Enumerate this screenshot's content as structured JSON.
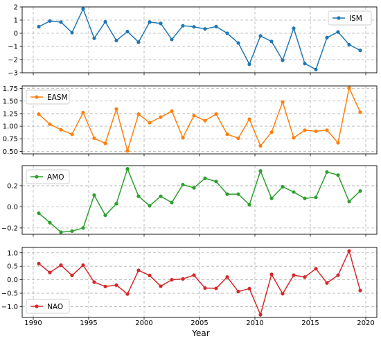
{
  "chart_data": [
    {
      "type": "line",
      "x": [
        1990.5,
        1991.5,
        1992.5,
        1993.5,
        1994.5,
        1995.5,
        1996.5,
        1997.5,
        1998.5,
        1999.5,
        2000.5,
        2001.5,
        2002.5,
        2003.5,
        2004.5,
        2005.5,
        2006.5,
        2007.5,
        2008.5,
        2009.5,
        2010.5,
        2011.5,
        2012.5,
        2013.5,
        2014.5,
        2015.5,
        2016.5,
        2017.5,
        2018.5,
        2019.5
      ],
      "series": [
        {
          "name": "ISM",
          "color": "#1f77b4",
          "values": [
            0.5,
            0.93,
            0.85,
            0.05,
            1.85,
            -0.38,
            0.87,
            -0.55,
            0.13,
            -0.67,
            0.85,
            0.75,
            -0.47,
            0.57,
            0.49,
            0.33,
            0.51,
            0.0,
            -0.74,
            -2.35,
            -0.2,
            -0.62,
            -2.05,
            0.38,
            -2.3,
            -2.75,
            -0.33,
            0.1,
            -0.86,
            -1.3
          ]
        }
      ],
      "ylim": [
        -3,
        2
      ],
      "yticks": [
        "2",
        "1",
        "0",
        "−1",
        "−2",
        "−3"
      ],
      "ytick_values": [
        2,
        1,
        0,
        -1,
        -2,
        -3
      ],
      "legend_position": "upper right",
      "grid": true
    },
    {
      "type": "line",
      "x": [
        1990.5,
        1991.5,
        1992.5,
        1993.5,
        1994.5,
        1995.5,
        1996.5,
        1997.5,
        1998.5,
        1999.5,
        2000.5,
        2001.5,
        2002.5,
        2003.5,
        2004.5,
        2005.5,
        2006.5,
        2007.5,
        2008.5,
        2009.5,
        2010.5,
        2011.5,
        2012.5,
        2013.5,
        2014.5,
        2015.5,
        2016.5,
        2017.5,
        2018.5,
        2019.5
      ],
      "series": [
        {
          "name": "EASM",
          "color": "#ff7f0e",
          "values": [
            1.24,
            1.04,
            0.93,
            0.84,
            1.27,
            0.76,
            0.66,
            1.34,
            0.51,
            1.24,
            1.07,
            1.18,
            1.3,
            0.77,
            1.21,
            1.11,
            1.24,
            0.84,
            0.76,
            1.14,
            0.61,
            0.88,
            1.48,
            0.77,
            0.92,
            0.9,
            0.92,
            0.67,
            1.76,
            1.28
          ]
        }
      ],
      "ylim": [
        0.45,
        1.8
      ],
      "yticks": [
        "1.75",
        "1.50",
        "1.25",
        "1.00",
        "0.75",
        "0.50"
      ],
      "ytick_values": [
        1.75,
        1.5,
        1.25,
        1.0,
        0.75,
        0.5
      ],
      "legend_position": "upper left",
      "grid": true
    },
    {
      "type": "line",
      "x": [
        1990.5,
        1991.5,
        1992.5,
        1993.5,
        1994.5,
        1995.5,
        1996.5,
        1997.5,
        1998.5,
        1999.5,
        2000.5,
        2001.5,
        2002.5,
        2003.5,
        2004.5,
        2005.5,
        2006.5,
        2007.5,
        2008.5,
        2009.5,
        2010.5,
        2011.5,
        2012.5,
        2013.5,
        2014.5,
        2015.5,
        2016.5,
        2017.5,
        2018.5,
        2019.5
      ],
      "series": [
        {
          "name": "AMO",
          "color": "#2ca02c",
          "values": [
            -0.06,
            -0.15,
            -0.24,
            -0.23,
            -0.2,
            0.11,
            -0.08,
            0.03,
            0.36,
            0.1,
            0.01,
            0.1,
            0.04,
            0.21,
            0.18,
            0.27,
            0.24,
            0.12,
            0.12,
            0.02,
            0.34,
            0.08,
            0.19,
            0.14,
            0.08,
            0.09,
            0.33,
            0.3,
            0.05,
            0.15
          ]
        }
      ],
      "ylim": [
        -0.26,
        0.39
      ],
      "yticks": [
        "0.2",
        "0.0",
        "−0.2"
      ],
      "ytick_values": [
        0.2,
        0.0,
        -0.2
      ],
      "legend_position": "upper left",
      "grid": true
    },
    {
      "type": "line",
      "x": [
        1990.5,
        1991.5,
        1992.5,
        1993.5,
        1994.5,
        1995.5,
        1996.5,
        1997.5,
        1998.5,
        1999.5,
        2000.5,
        2001.5,
        2002.5,
        2003.5,
        2004.5,
        2005.5,
        2006.5,
        2007.5,
        2008.5,
        2009.5,
        2010.5,
        2011.5,
        2012.5,
        2013.5,
        2014.5,
        2015.5,
        2016.5,
        2017.5,
        2018.5,
        2019.5
      ],
      "series": [
        {
          "name": "NAO",
          "color": "#d62728",
          "values": [
            0.6,
            0.27,
            0.54,
            0.16,
            0.54,
            -0.09,
            -0.25,
            -0.2,
            -0.53,
            0.35,
            0.16,
            -0.24,
            0.0,
            0.03,
            0.17,
            -0.31,
            -0.32,
            0.1,
            -0.44,
            -0.33,
            -1.3,
            0.2,
            -0.52,
            0.17,
            0.1,
            0.41,
            -0.12,
            0.17,
            1.07,
            -0.4
          ]
        }
      ],
      "ylim": [
        -1.4,
        1.2
      ],
      "yticks": [
        "1.0",
        "0.5",
        "0.0",
        "−0.5",
        "−1.0"
      ],
      "ytick_values": [
        1.0,
        0.5,
        0.0,
        -0.5,
        -1.0
      ],
      "legend_position": "lower left",
      "grid": true
    }
  ],
  "shared_x": {
    "xlim": [
      1989,
      2021
    ],
    "ticks": [
      "1990",
      "1995",
      "2000",
      "2005",
      "2010",
      "2015",
      "2020"
    ],
    "tick_values": [
      1990,
      1995,
      2000,
      2005,
      2010,
      2015,
      2020
    ],
    "xlabel": "Year"
  }
}
